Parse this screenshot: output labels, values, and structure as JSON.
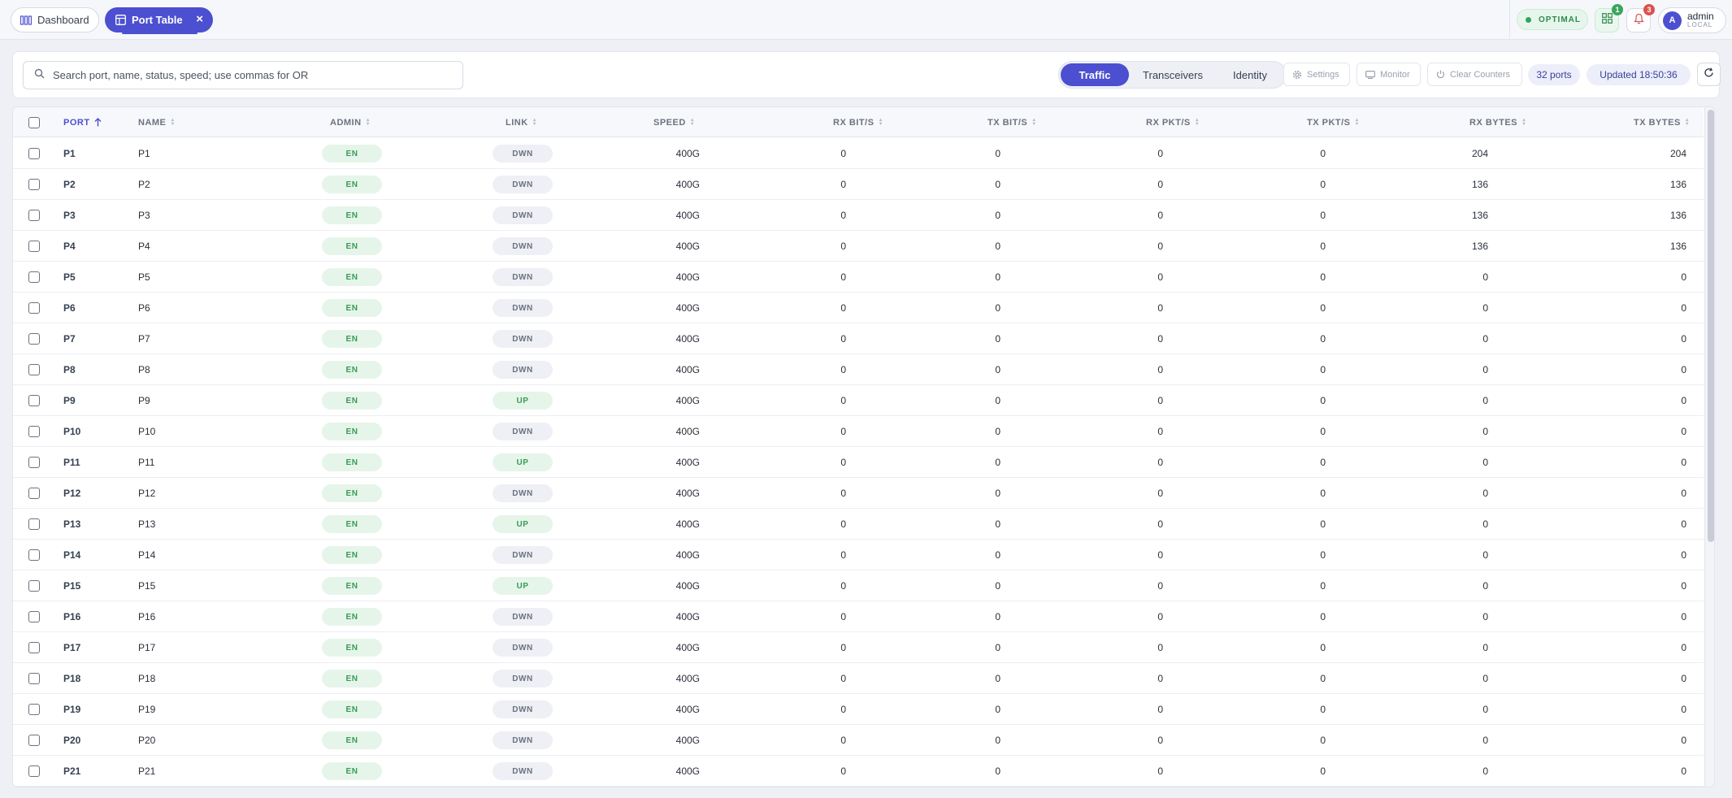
{
  "tabs": {
    "dashboard": "Dashboard",
    "port_table": "Port Table"
  },
  "header": {
    "status": "OPTIMAL",
    "apps_badge": "1",
    "notifications_badge": "3",
    "user_initial": "A",
    "user_name": "admin",
    "user_realm": "LOCAL"
  },
  "toolbar": {
    "search_placeholder": "Search port, name, status, speed; use commas for OR",
    "views": [
      "Traffic",
      "Transceivers",
      "Identity"
    ],
    "active_view": "Traffic",
    "settings_label": "Settings",
    "monitor_label": "Monitor",
    "clear_counters_label": "Clear Counters",
    "port_count": "32 ports",
    "updated": "Updated 18:50:36"
  },
  "table": {
    "columns": [
      "PORT",
      "NAME",
      "ADMIN",
      "LINK",
      "SPEED",
      "RX BIT/S",
      "TX BIT/S",
      "RX PKT/S",
      "TX PKT/S",
      "RX BYTES",
      "TX BYTES"
    ],
    "sort_column": "PORT",
    "rows": [
      {
        "port": "P1",
        "name": "P1",
        "admin": "EN",
        "link": "DWN",
        "speed": "400G",
        "rx_bits": "0",
        "tx_bits": "0",
        "rx_pkts": "0",
        "tx_pkts": "0",
        "rx_bytes": "204",
        "tx_bytes": "204"
      },
      {
        "port": "P2",
        "name": "P2",
        "admin": "EN",
        "link": "DWN",
        "speed": "400G",
        "rx_bits": "0",
        "tx_bits": "0",
        "rx_pkts": "0",
        "tx_pkts": "0",
        "rx_bytes": "136",
        "tx_bytes": "136"
      },
      {
        "port": "P3",
        "name": "P3",
        "admin": "EN",
        "link": "DWN",
        "speed": "400G",
        "rx_bits": "0",
        "tx_bits": "0",
        "rx_pkts": "0",
        "tx_pkts": "0",
        "rx_bytes": "136",
        "tx_bytes": "136"
      },
      {
        "port": "P4",
        "name": "P4",
        "admin": "EN",
        "link": "DWN",
        "speed": "400G",
        "rx_bits": "0",
        "tx_bits": "0",
        "rx_pkts": "0",
        "tx_pkts": "0",
        "rx_bytes": "136",
        "tx_bytes": "136"
      },
      {
        "port": "P5",
        "name": "P5",
        "admin": "EN",
        "link": "DWN",
        "speed": "400G",
        "rx_bits": "0",
        "tx_bits": "0",
        "rx_pkts": "0",
        "tx_pkts": "0",
        "rx_bytes": "0",
        "tx_bytes": "0"
      },
      {
        "port": "P6",
        "name": "P6",
        "admin": "EN",
        "link": "DWN",
        "speed": "400G",
        "rx_bits": "0",
        "tx_bits": "0",
        "rx_pkts": "0",
        "tx_pkts": "0",
        "rx_bytes": "0",
        "tx_bytes": "0"
      },
      {
        "port": "P7",
        "name": "P7",
        "admin": "EN",
        "link": "DWN",
        "speed": "400G",
        "rx_bits": "0",
        "tx_bits": "0",
        "rx_pkts": "0",
        "tx_pkts": "0",
        "rx_bytes": "0",
        "tx_bytes": "0"
      },
      {
        "port": "P8",
        "name": "P8",
        "admin": "EN",
        "link": "DWN",
        "speed": "400G",
        "rx_bits": "0",
        "tx_bits": "0",
        "rx_pkts": "0",
        "tx_pkts": "0",
        "rx_bytes": "0",
        "tx_bytes": "0"
      },
      {
        "port": "P9",
        "name": "P9",
        "admin": "EN",
        "link": "UP",
        "speed": "400G",
        "rx_bits": "0",
        "tx_bits": "0",
        "rx_pkts": "0",
        "tx_pkts": "0",
        "rx_bytes": "0",
        "tx_bytes": "0"
      },
      {
        "port": "P10",
        "name": "P10",
        "admin": "EN",
        "link": "DWN",
        "speed": "400G",
        "rx_bits": "0",
        "tx_bits": "0",
        "rx_pkts": "0",
        "tx_pkts": "0",
        "rx_bytes": "0",
        "tx_bytes": "0"
      },
      {
        "port": "P11",
        "name": "P11",
        "admin": "EN",
        "link": "UP",
        "speed": "400G",
        "rx_bits": "0",
        "tx_bits": "0",
        "rx_pkts": "0",
        "tx_pkts": "0",
        "rx_bytes": "0",
        "tx_bytes": "0"
      },
      {
        "port": "P12",
        "name": "P12",
        "admin": "EN",
        "link": "DWN",
        "speed": "400G",
        "rx_bits": "0",
        "tx_bits": "0",
        "rx_pkts": "0",
        "tx_pkts": "0",
        "rx_bytes": "0",
        "tx_bytes": "0"
      },
      {
        "port": "P13",
        "name": "P13",
        "admin": "EN",
        "link": "UP",
        "speed": "400G",
        "rx_bits": "0",
        "tx_bits": "0",
        "rx_pkts": "0",
        "tx_pkts": "0",
        "rx_bytes": "0",
        "tx_bytes": "0"
      },
      {
        "port": "P14",
        "name": "P14",
        "admin": "EN",
        "link": "DWN",
        "speed": "400G",
        "rx_bits": "0",
        "tx_bits": "0",
        "rx_pkts": "0",
        "tx_pkts": "0",
        "rx_bytes": "0",
        "tx_bytes": "0"
      },
      {
        "port": "P15",
        "name": "P15",
        "admin": "EN",
        "link": "UP",
        "speed": "400G",
        "rx_bits": "0",
        "tx_bits": "0",
        "rx_pkts": "0",
        "tx_pkts": "0",
        "rx_bytes": "0",
        "tx_bytes": "0"
      },
      {
        "port": "P16",
        "name": "P16",
        "admin": "EN",
        "link": "DWN",
        "speed": "400G",
        "rx_bits": "0",
        "tx_bits": "0",
        "rx_pkts": "0",
        "tx_pkts": "0",
        "rx_bytes": "0",
        "tx_bytes": "0"
      },
      {
        "port": "P17",
        "name": "P17",
        "admin": "EN",
        "link": "DWN",
        "speed": "400G",
        "rx_bits": "0",
        "tx_bits": "0",
        "rx_pkts": "0",
        "tx_pkts": "0",
        "rx_bytes": "0",
        "tx_bytes": "0"
      },
      {
        "port": "P18",
        "name": "P18",
        "admin": "EN",
        "link": "DWN",
        "speed": "400G",
        "rx_bits": "0",
        "tx_bits": "0",
        "rx_pkts": "0",
        "tx_pkts": "0",
        "rx_bytes": "0",
        "tx_bytes": "0"
      },
      {
        "port": "P19",
        "name": "P19",
        "admin": "EN",
        "link": "DWN",
        "speed": "400G",
        "rx_bits": "0",
        "tx_bits": "0",
        "rx_pkts": "0",
        "tx_pkts": "0",
        "rx_bytes": "0",
        "tx_bytes": "0"
      },
      {
        "port": "P20",
        "name": "P20",
        "admin": "EN",
        "link": "DWN",
        "speed": "400G",
        "rx_bits": "0",
        "tx_bits": "0",
        "rx_pkts": "0",
        "tx_pkts": "0",
        "rx_bytes": "0",
        "tx_bytes": "0"
      },
      {
        "port": "P21",
        "name": "P21",
        "admin": "EN",
        "link": "DWN",
        "speed": "400G",
        "rx_bits": "0",
        "tx_bits": "0",
        "rx_pkts": "0",
        "tx_pkts": "0",
        "rx_bytes": "0",
        "tx_bytes": "0"
      }
    ]
  },
  "colors": {
    "accent": "#4c4fd0",
    "status_ok": "#33a35b",
    "alert": "#d9534f"
  },
  "icons": {
    "dashboard": "dashboard-icon",
    "table": "table-icon",
    "close": "close-icon",
    "apps": "apps-icon",
    "bell": "bell-icon",
    "search": "search-icon",
    "settings": "gear-icon",
    "monitor": "monitor-icon",
    "clear": "power-icon",
    "refresh": "refresh-icon",
    "sort_asc": "arrow-up-icon"
  }
}
